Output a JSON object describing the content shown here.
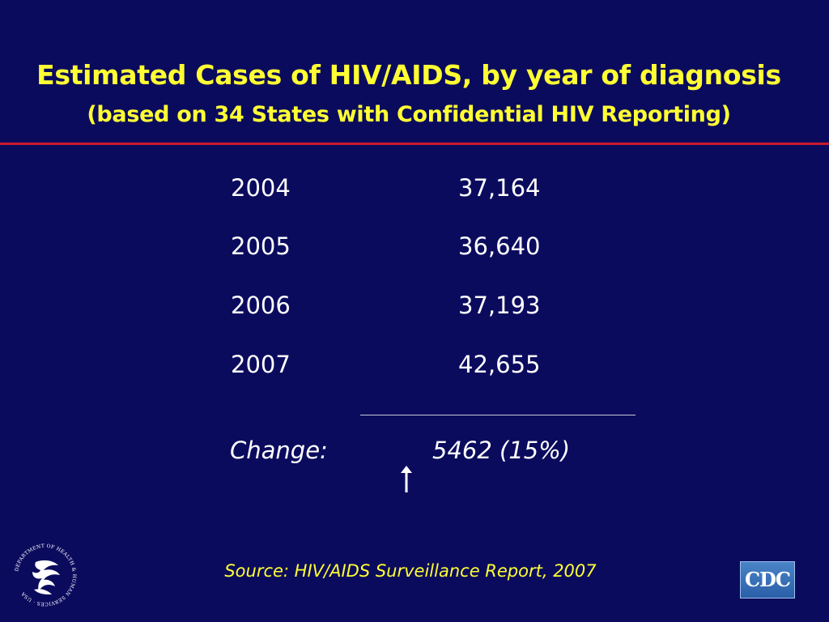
{
  "slide": {
    "title": "Estimated Cases of HIV/AIDS, by year of diagnosis",
    "subtitle": "(based on 34 States with Confidential HIV Reporting)",
    "rows": [
      {
        "year": "2004",
        "cases": "37,164"
      },
      {
        "year": "2005",
        "cases": "36,640"
      },
      {
        "year": "2006",
        "cases": "37,193"
      },
      {
        "year": "2007",
        "cases": "42,655"
      }
    ],
    "change_label": "Change:",
    "change_value": "5462 (15%)",
    "source": "Source:  HIV/AIDS Surveillance Report, 2007",
    "cdc_logo_text": "CDC",
    "hhs_seal_text": "DEPARTMENT OF HEALTH & HUMAN SERVICES · USA",
    "arrow_icon": "up-arrow-icon"
  },
  "colors": {
    "background": "#0b0b5e",
    "title": "#ffff33",
    "divider": "#cc1a2e",
    "body_text": "#ffffff",
    "cdc_blue": "#2a5fa8"
  }
}
